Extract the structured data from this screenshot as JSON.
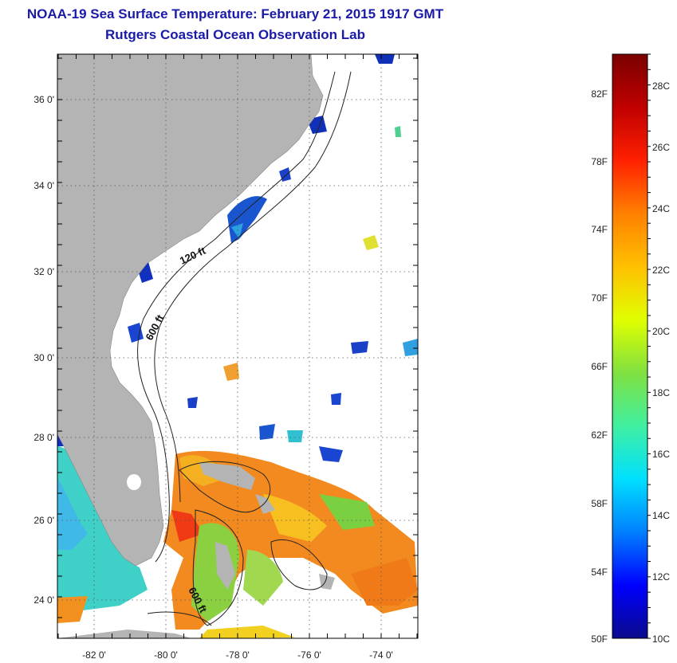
{
  "title": "NOAA-19 Sea Surface Temperature:  February 21, 2015 1917 GMT",
  "subtitle": "Rutgers Coastal Ocean Observation Lab",
  "map": {
    "lat_labels": [
      "36 0'",
      "34 0'",
      "32 0'",
      "30 0'",
      "28 0'",
      "26 0'",
      "24 0'"
    ],
    "lon_labels": [
      "-82 0'",
      "-80 0'",
      "-78 0'",
      "-76 0'",
      "-74 0'"
    ],
    "isobath_labels": [
      "120 ft",
      "600 ft",
      "600 ft"
    ],
    "colors": {
      "land": "#b4b4b4",
      "ocean_nodata": "#ffffff",
      "grid": "#555555"
    }
  },
  "colorbar": {
    "fahrenheit_labels": [
      "82F",
      "78F",
      "74F",
      "70F",
      "66F",
      "62F",
      "58F",
      "54F",
      "50F"
    ],
    "celsius_labels": [
      "28C",
      "26C",
      "24C",
      "22C",
      "20C",
      "18C",
      "16C",
      "14C",
      "12C",
      "10C"
    ],
    "range_celsius": [
      10,
      29
    ],
    "gradient": [
      "#0a0a8c",
      "#0000ff",
      "#0080ff",
      "#00e0ff",
      "#40f0a0",
      "#80e040",
      "#e0ff00",
      "#ffc000",
      "#ff8000",
      "#ff2000",
      "#c00000",
      "#7a0000"
    ]
  }
}
